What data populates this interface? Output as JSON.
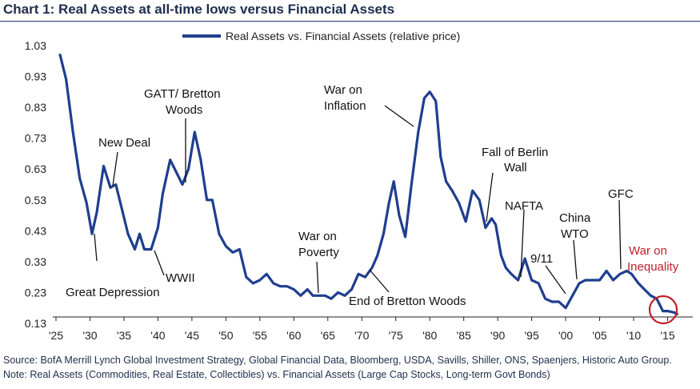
{
  "title": "Chart 1:  Real Assets at all-time lows versus Financial Assets",
  "source": "Source:  BofA Merrill Lynch Global Investment Strategy, Global Financial Data, Bloomberg, USDA, Savills, Shiller, ONS, Spaenjers, Historic Auto Group. Note:  Real Assets (Commodities, Real Estate, Collectibles) vs. Financial Assets (Large Cap Stocks, Long-term Govt Bonds)",
  "colors": {
    "line": "#1f3e8f",
    "text": "#1f2d4d",
    "highlight": "#c0202a"
  },
  "chart_data": {
    "type": "line",
    "title": "Chart 1:  Real Assets at all-time lows versus Financial Assets",
    "xlabel": "",
    "ylabel": "",
    "xlim": [
      1925,
      2017
    ],
    "ylim": [
      0.13,
      1.03
    ],
    "grid": false,
    "legend_position": "top",
    "x_ticks": [
      1925,
      1930,
      1935,
      1940,
      1945,
      1950,
      1955,
      1960,
      1965,
      1970,
      1975,
      1980,
      1985,
      1990,
      1995,
      2000,
      2005,
      2010,
      2015
    ],
    "x_tick_labels": [
      "'25",
      "'30",
      "'35",
      "'40",
      "'45",
      "'50",
      "'55",
      "'60",
      "'65",
      "'70",
      "'75",
      "'80",
      "'85",
      "'90",
      "'95",
      "'00",
      "'05",
      "'10",
      "'15"
    ],
    "y_ticks": [
      0.13,
      0.23,
      0.33,
      0.43,
      0.53,
      0.63,
      0.73,
      0.83,
      0.93,
      1.03
    ],
    "y_tick_labels": [
      "0.13",
      "0.23",
      "0.33",
      "0.43",
      "0.53",
      "0.63",
      "0.73",
      "0.83",
      "0.93",
      "1.03"
    ],
    "series": [
      {
        "name": "Real Assets vs. Financial Assets (relative price)",
        "x": [
          1925.6,
          1926.5,
          1927.5,
          1928.5,
          1929.5,
          1930.3,
          1931.0,
          1932.0,
          1933.0,
          1933.8,
          1934.7,
          1935.6,
          1936.6,
          1937.3,
          1938.0,
          1939.0,
          1940.0,
          1940.7,
          1941.8,
          1942.7,
          1943.6,
          1944.5,
          1945.4,
          1946.3,
          1947.2,
          1948.0,
          1949.0,
          1950.0,
          1951.0,
          1952.0,
          1953.0,
          1954.0,
          1955.0,
          1956.0,
          1957.0,
          1958.0,
          1959.0,
          1960.0,
          1961.0,
          1962.0,
          1962.8,
          1963.7,
          1964.6,
          1965.5,
          1966.5,
          1967.5,
          1968.5,
          1969.5,
          1970.5,
          1971.5,
          1972.3,
          1973.2,
          1974.0,
          1974.7,
          1975.5,
          1976.4,
          1977.3,
          1978.3,
          1979.2,
          1980.0,
          1980.9,
          1981.6,
          1982.4,
          1983.3,
          1984.3,
          1985.3,
          1986.3,
          1987.3,
          1988.2,
          1989.1,
          1989.7,
          1990.5,
          1991.2,
          1992.0,
          1993.0,
          1994.0,
          1995.0,
          1996.0,
          1997.0,
          1998.0,
          1999.0,
          2000.0,
          2001.0,
          2002.0,
          2002.9,
          2004.0,
          2005.0,
          2006.0,
          2007.0,
          2008.0,
          2009.0,
          2009.7,
          2010.7,
          2011.6,
          2012.5,
          2013.4,
          2014.3,
          2015.0,
          2016.0,
          2016.4
        ],
        "y": [
          1.0,
          0.92,
          0.75,
          0.6,
          0.52,
          0.42,
          0.49,
          0.64,
          0.57,
          0.58,
          0.5,
          0.42,
          0.37,
          0.42,
          0.37,
          0.37,
          0.44,
          0.55,
          0.66,
          0.62,
          0.58,
          0.63,
          0.75,
          0.66,
          0.53,
          0.53,
          0.42,
          0.38,
          0.36,
          0.37,
          0.28,
          0.26,
          0.27,
          0.29,
          0.26,
          0.25,
          0.25,
          0.24,
          0.22,
          0.24,
          0.22,
          0.22,
          0.22,
          0.21,
          0.23,
          0.22,
          0.24,
          0.29,
          0.28,
          0.31,
          0.35,
          0.42,
          0.52,
          0.59,
          0.48,
          0.41,
          0.58,
          0.75,
          0.86,
          0.88,
          0.85,
          0.67,
          0.59,
          0.56,
          0.52,
          0.46,
          0.56,
          0.53,
          0.44,
          0.47,
          0.45,
          0.35,
          0.31,
          0.29,
          0.27,
          0.34,
          0.27,
          0.26,
          0.21,
          0.2,
          0.2,
          0.18,
          0.22,
          0.26,
          0.27,
          0.27,
          0.27,
          0.3,
          0.27,
          0.29,
          0.3,
          0.29,
          0.26,
          0.24,
          0.22,
          0.21,
          0.17,
          0.17,
          0.165,
          0.16
        ]
      }
    ],
    "annotations": [
      {
        "text": "Great Depression",
        "x": 1930.3,
        "y": 0.42
      },
      {
        "text": "New Deal",
        "x": 1933.0,
        "y": 0.57
      },
      {
        "text": "GATT/ Bretton Woods",
        "x": 1944.5,
        "y": 0.58
      },
      {
        "text": "WWII",
        "x": 1940.0,
        "y": 0.37
      },
      {
        "text": "War on Poverty",
        "x": 1964.6,
        "y": 0.22
      },
      {
        "text": "End of Bretton Woods",
        "x": 1971.5,
        "y": 0.31
      },
      {
        "text": "War on Inflation",
        "x": 1979.2,
        "y": 0.86
      },
      {
        "text": "Fall of Berlin Wall",
        "x": 1989.1,
        "y": 0.44
      },
      {
        "text": "NAFTA",
        "x": 1994.0,
        "y": 0.34
      },
      {
        "text": "9/11",
        "x": 2001.0,
        "y": 0.21
      },
      {
        "text": "China WTO",
        "x": 2002.0,
        "y": 0.26
      },
      {
        "text": "GFC",
        "x": 2008.0,
        "y": 0.29
      },
      {
        "text": "War on Inequality",
        "x": 2015.0,
        "y": 0.17
      }
    ]
  }
}
